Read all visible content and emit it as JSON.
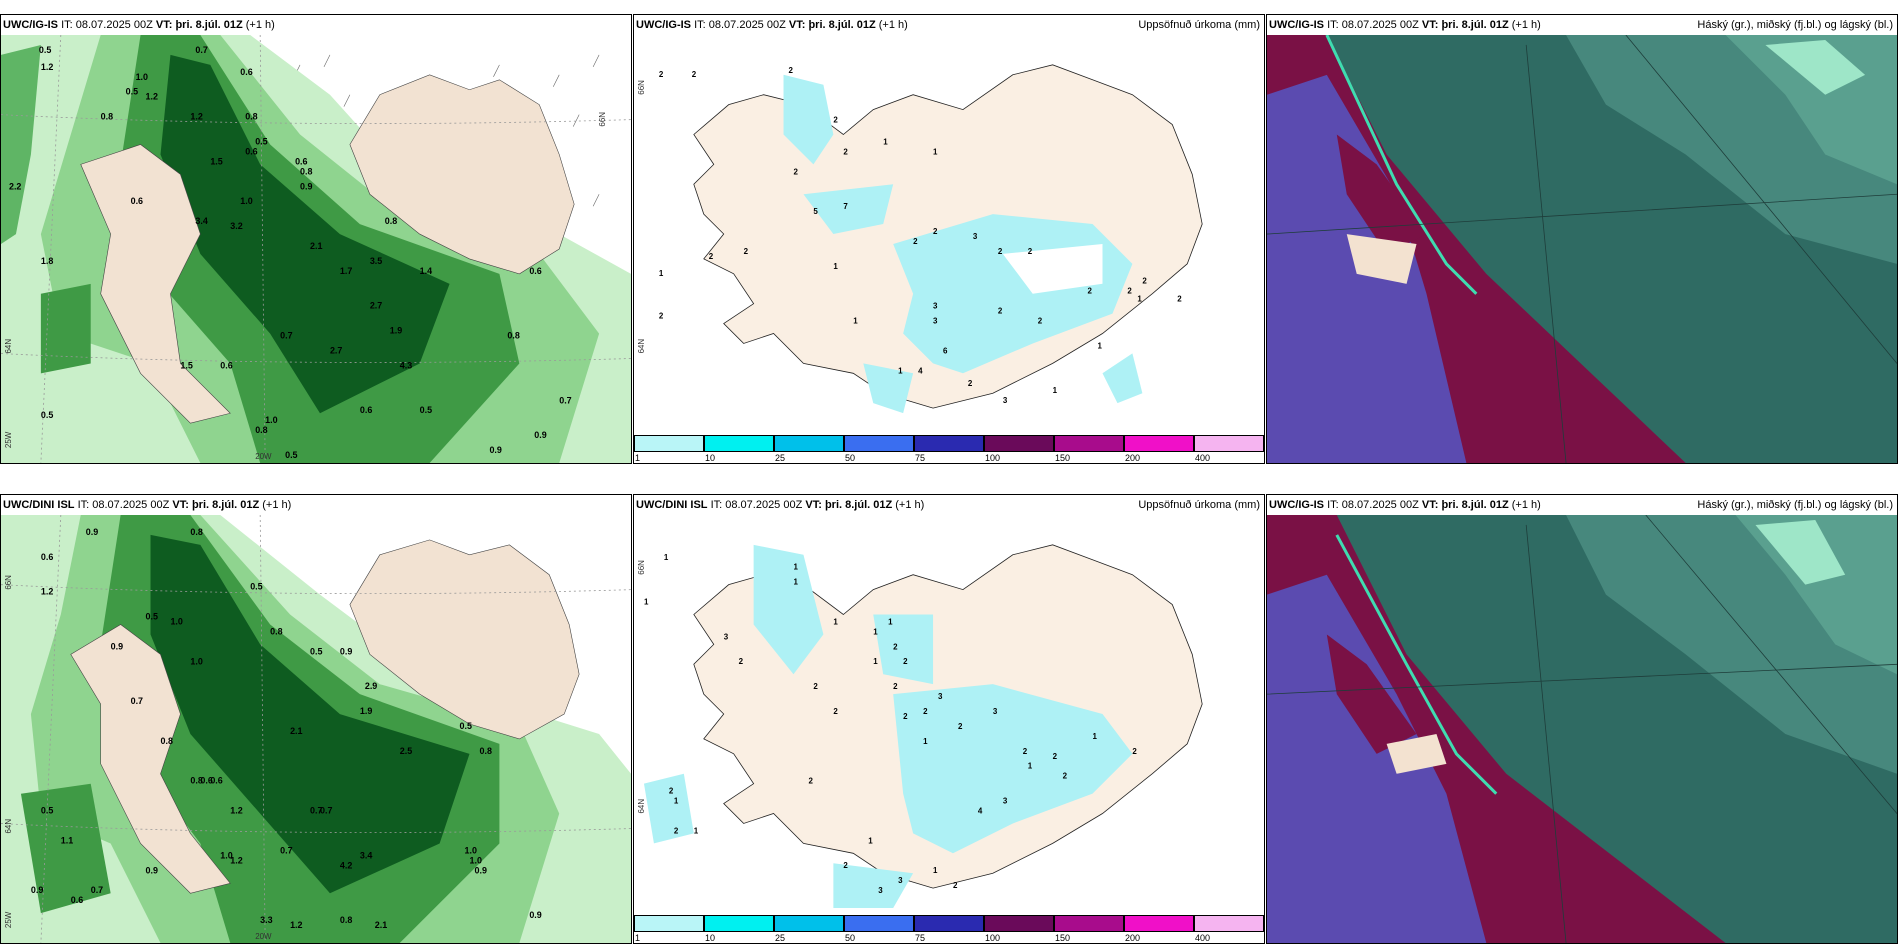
{
  "panels": [
    {
      "id": "p1",
      "model": "UWC/IG-IS",
      "it_label": "IT:",
      "it": "08.07.2025 00Z",
      "vt_label": "VT:",
      "vt": "þri. 8.júl. 01Z",
      "lead": "(+1 h)",
      "right": ""
    },
    {
      "id": "p2",
      "model": "UWC/IG-IS",
      "it_label": "IT:",
      "it": "08.07.2025 00Z",
      "vt_label": "VT:",
      "vt": "þri. 8.júl. 01Z",
      "lead": "(+1 h)",
      "right": "Uppsöfnuð úrkoma (mm)"
    },
    {
      "id": "p3",
      "model": "UWC/IG-IS",
      "it_label": "IT:",
      "it": "08.07.2025 00Z",
      "vt_label": "VT:",
      "vt": "þri. 8.júl. 01Z",
      "lead": "(+1 h)",
      "right": "Háský (gr.), miðský (fj.bl.) og lágský (bl.)"
    },
    {
      "id": "p4",
      "model": "UWC/DINI ISL",
      "it_label": "IT:",
      "it": "08.07.2025 00Z",
      "vt_label": "VT:",
      "vt": "þri. 8.júl. 01Z",
      "lead": "(+1 h)",
      "right": ""
    },
    {
      "id": "p5",
      "model": "UWC/DINI ISL",
      "it_label": "IT:",
      "it": "08.07.2025 00Z",
      "vt_label": "VT:",
      "vt": "þri. 8.júl. 01Z",
      "lead": "(+1 h)",
      "right": "Uppsöfnuð úrkoma (mm)"
    },
    {
      "id": "p6",
      "model": "UWC/IG-IS",
      "it_label": "IT:",
      "it": "08.07.2025 00Z",
      "vt_label": "VT:",
      "vt": "þri. 8.júl. 01Z",
      "lead": "(+1 h)",
      "right": "Háský (gr.), miðský (fj.bl.) og lágský (bl.)"
    }
  ],
  "colorbar": {
    "ticks": [
      "1",
      "10",
      "25",
      "50",
      "75",
      "100",
      "150",
      "200",
      "400"
    ],
    "colors": [
      "#b9f5f7",
      "#00f0f0",
      "#00c0ea",
      "#3a6ef0",
      "#2a2ab0",
      "#6a0a5a",
      "#a80c8c",
      "#f010c8",
      "#f5b4f0"
    ]
  },
  "map_labels": {
    "lat66": "66N",
    "lat64": "64N",
    "lon20": "20W",
    "lon25": "25W"
  },
  "precip_values": {
    "p1": [
      "0.5",
      "0.7",
      "0.6",
      "1.0",
      "1.2",
      "1.2",
      "0.5",
      "0.8",
      "1.2",
      "1.5",
      "0.6",
      "0.8",
      "0.5",
      "0.6",
      "2.2",
      "1.0",
      "0.9",
      "0.8",
      "3.4",
      "3.2",
      "1.8",
      "2.1",
      "0.8",
      "1.7",
      "3.5",
      "1.4",
      "2.7",
      "1.9",
      "4.3",
      "2.7",
      "1.5",
      "0.5",
      "0.6",
      "0.6",
      "0.5",
      "0.8",
      "1.0",
      "0.5",
      "0.9",
      "0.6",
      "0.7",
      "0.9",
      "0.7",
      "0.6",
      "0.8"
    ],
    "p2": [
      "2",
      "2",
      "2",
      "2",
      "1",
      "1",
      "2",
      "2",
      "7",
      "5",
      "2",
      "2",
      "1",
      "2",
      "1",
      "2",
      "2",
      "3",
      "2",
      "2",
      "1",
      "3",
      "3",
      "1",
      "6",
      "2",
      "4",
      "2",
      "3",
      "2",
      "1",
      "2",
      "2",
      "1",
      "2",
      "2",
      "1"
    ],
    "p4": [
      "0.9",
      "0.8",
      "0.6",
      "1.2",
      "1.0",
      "0.5",
      "0.5",
      "1.0",
      "0.9",
      "0.8",
      "0.7",
      "0.8",
      "0.5",
      "2.1",
      "0.9",
      "2.9",
      "1.9",
      "2.5",
      "0.5",
      "0.8",
      "1.0",
      "0.7",
      "1.0",
      "0.6",
      "1.1",
      "1.2",
      "3.4",
      "4.2",
      "0.7",
      "0.5",
      "0.6",
      "1.2",
      "0.9",
      "0.6",
      "0.7",
      "0.9",
      "0.8",
      "0.7",
      "1.0",
      "0.9",
      "3.3",
      "1.2",
      "2.1",
      "0.9",
      "0.8"
    ],
    "p5": [
      "1",
      "1",
      "1",
      "1",
      "1",
      "3",
      "2",
      "2",
      "1",
      "1",
      "2",
      "2",
      "1",
      "2",
      "2",
      "3",
      "2",
      "2",
      "1",
      "2",
      "2",
      "1",
      "2",
      "3",
      "1",
      "2",
      "2",
      "1",
      "4",
      "3",
      "2",
      "1",
      "2",
      "2",
      "3",
      "3",
      "1",
      "2",
      "1",
      "2"
    ]
  }
}
